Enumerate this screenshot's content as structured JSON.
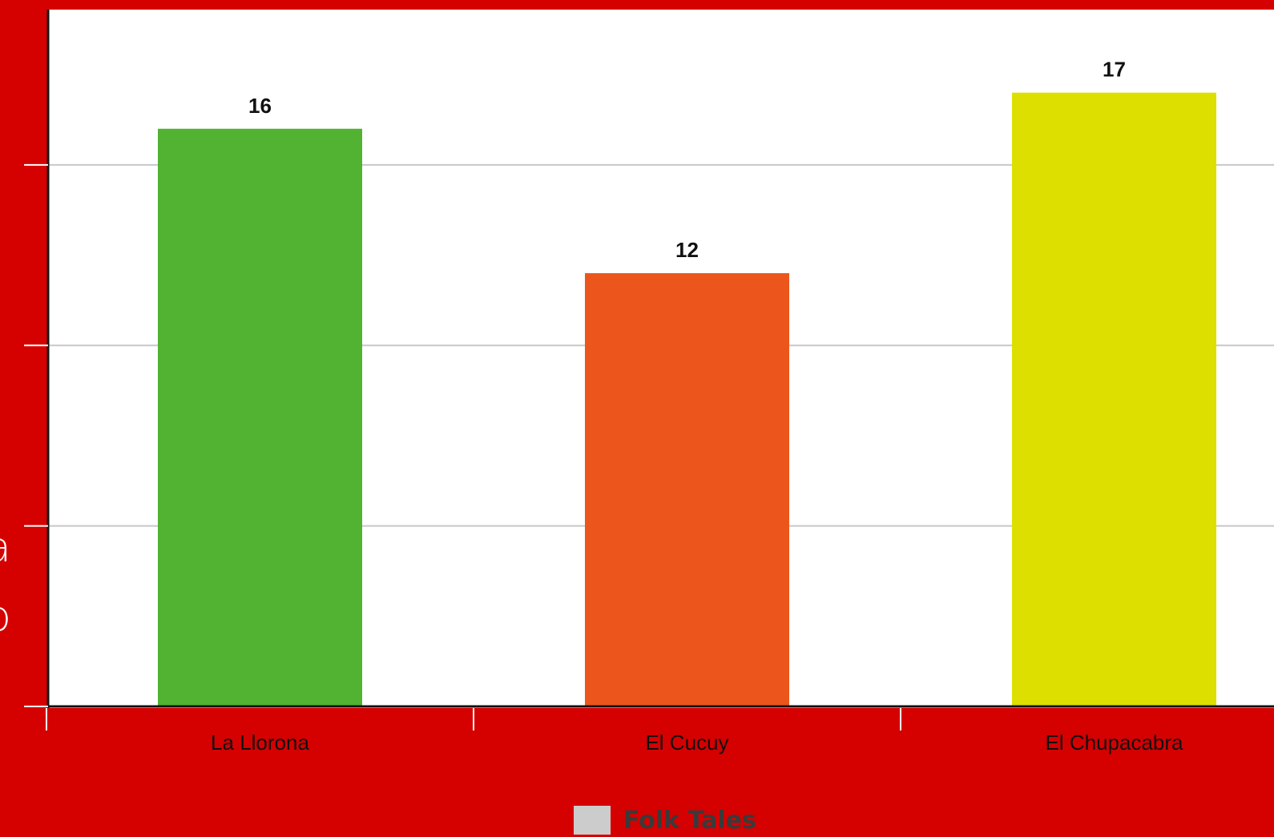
{
  "page": {
    "background": "#d50000",
    "plot_background": "#ffffff",
    "cropped_left_fragments": [
      "a",
      "o"
    ]
  },
  "chart_data": {
    "type": "bar",
    "categories": [
      "La Llorona",
      "El Cucuy",
      "El Chupacabra"
    ],
    "values": [
      16,
      12,
      17
    ],
    "data_labels": [
      "16",
      "12",
      "17"
    ],
    "colors": [
      "#52b232",
      "#ec561c",
      "#dddf00"
    ],
    "series": [
      {
        "name": "Folk Tales",
        "values": [
          16,
          12,
          17
        ]
      }
    ],
    "ylim": [
      0,
      19.3
    ],
    "y_gridlines": [
      0,
      5,
      10,
      15
    ],
    "grid": true,
    "legend": {
      "position": "bottom-center",
      "label": "Folk Tales",
      "swatch_color": "#cccccc"
    },
    "title": "",
    "xlabel": "",
    "ylabel": ""
  }
}
